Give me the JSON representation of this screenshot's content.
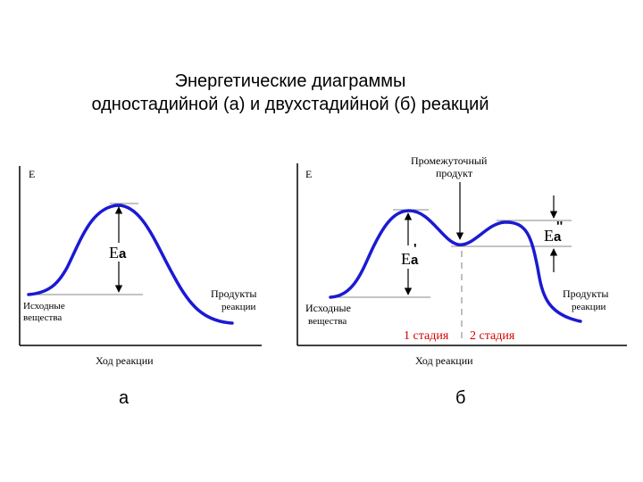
{
  "title": {
    "line1": "Энергетические диаграммы",
    "line2": "одностадийной (а) и двухстадийной (б) реакций"
  },
  "diagram_a": {
    "y_axis_label": "E",
    "x_axis_label": "Ход реакции",
    "activation_label": "E",
    "activation_sub": "a",
    "reactants": [
      "Исходные",
      "вещества"
    ],
    "products": [
      "Продукты",
      "реакции"
    ],
    "panel_letter": "а",
    "curve_color": "#1a1ad4"
  },
  "diagram_b": {
    "y_axis_label": "E",
    "x_axis_label": "Ход реакции",
    "activation1_label": "E",
    "activation1_sub": "a",
    "activation1_mark": "'",
    "activation2_label": "E",
    "activation2_sub": "a",
    "activation2_mark": "''",
    "intermediate": [
      "Промежуточный",
      "продукт"
    ],
    "reactants": [
      "Исходные",
      "вещества"
    ],
    "products": [
      "Продукты",
      "реакции"
    ],
    "stage1": "1 стадия",
    "stage2": "2 стадия",
    "panel_letter": "б",
    "curve_color": "#1a1ad4",
    "stage_color": "#d40000"
  }
}
